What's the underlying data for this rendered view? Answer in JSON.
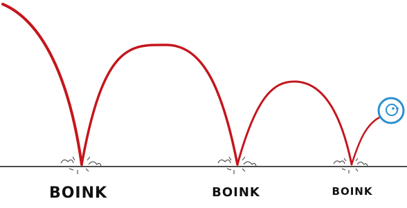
{
  "impacts": [
    {
      "label": "BOINK"
    },
    {
      "label": "BOINK"
    },
    {
      "label": "BOINK"
    }
  ]
}
